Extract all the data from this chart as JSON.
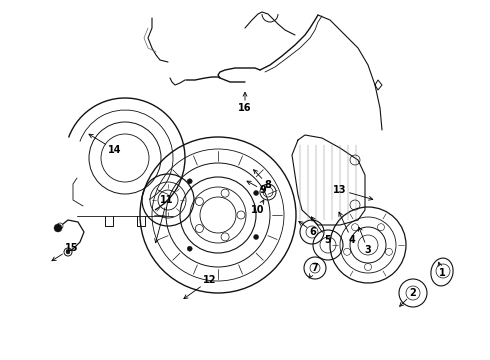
{
  "bg_color": "#ffffff",
  "lc": "#111111",
  "fig_width": 4.9,
  "fig_height": 3.6,
  "dpi": 100
}
